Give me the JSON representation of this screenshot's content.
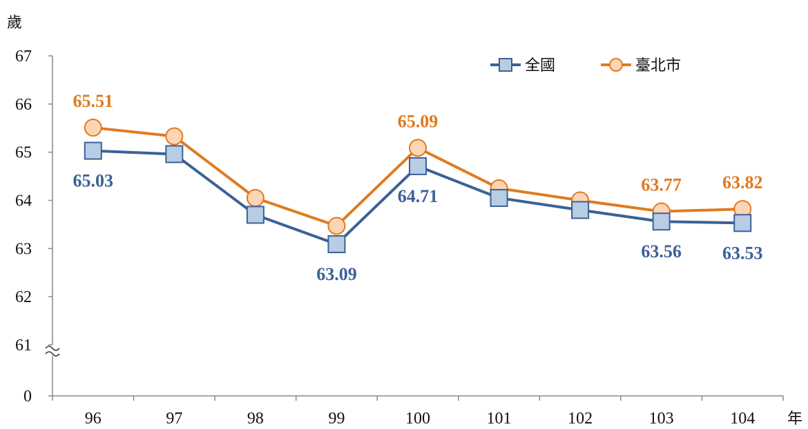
{
  "chart_data": {
    "type": "line",
    "y_unit": "歲",
    "x_unit": "年",
    "categories": [
      "96",
      "97",
      "98",
      "99",
      "100",
      "101",
      "102",
      "103",
      "104"
    ],
    "y_ticks": [
      "0",
      "61",
      "62",
      "63",
      "64",
      "65",
      "66",
      "67"
    ],
    "y_range": [
      61,
      67
    ],
    "y_axis_break": true,
    "grid": false,
    "legend_position": "top-right",
    "series": [
      {
        "name": "全國",
        "color": "#3b6198",
        "marker": "square",
        "marker_fill": "#b8cce4",
        "values": [
          65.03,
          64.96,
          63.7,
          63.09,
          64.71,
          64.05,
          63.8,
          63.56,
          63.53
        ],
        "labels": [
          "65.03",
          "",
          "",
          "63.09",
          "64.71",
          "",
          "",
          "63.56",
          "63.53"
        ]
      },
      {
        "name": "臺北市",
        "color": "#e07a1f",
        "marker": "circle",
        "marker_fill": "#fcd5b5",
        "values": [
          65.51,
          65.33,
          64.05,
          63.47,
          65.09,
          64.25,
          64.0,
          63.77,
          63.82
        ],
        "labels": [
          "65.51",
          "",
          "",
          "",
          "65.09",
          "",
          "",
          "63.77",
          "63.82"
        ]
      }
    ]
  }
}
